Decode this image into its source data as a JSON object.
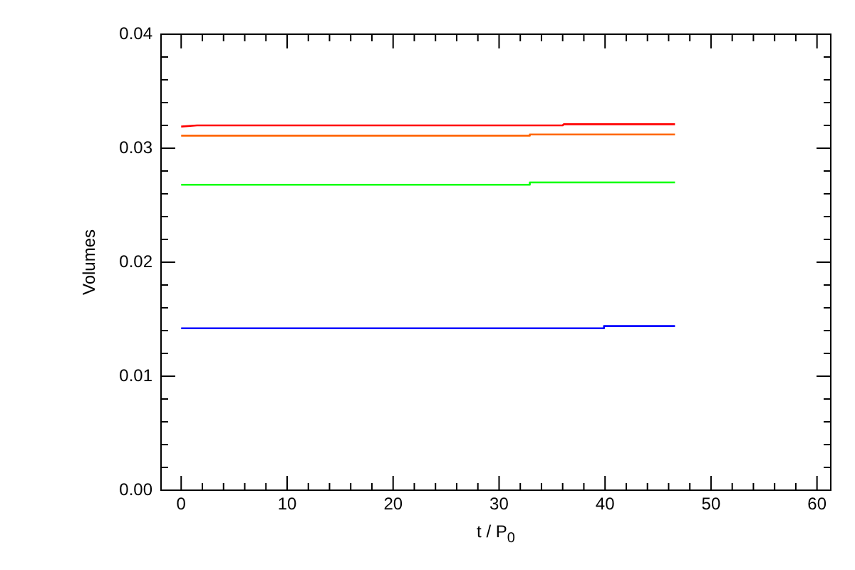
{
  "chart_data": {
    "type": "line",
    "xlabel": "t / P$_{0}$",
    "ylabel": "Volumes",
    "xlim": [
      -1.9,
      61.3
    ],
    "ylim": [
      0,
      0.04
    ],
    "xticks": [
      0,
      {
        "value": 2,
        "label": null
      },
      {
        "value": 4,
        "label": null
      },
      {
        "value": 6,
        "label": null
      },
      {
        "value": 8,
        "label": null
      },
      10,
      {
        "value": 12,
        "label": null
      },
      {
        "value": 14,
        "label": null
      },
      {
        "value": 16,
        "label": null
      },
      {
        "value": 18,
        "label": null
      },
      20,
      {
        "value": 22,
        "label": null
      },
      {
        "value": 24,
        "label": null
      },
      {
        "value": 26,
        "label": null
      },
      {
        "value": 28,
        "label": null
      },
      30,
      {
        "value": 32,
        "label": null
      },
      {
        "value": 34,
        "label": null
      },
      {
        "value": 36,
        "label": null
      },
      {
        "value": 38,
        "label": null
      },
      40,
      {
        "value": 42,
        "label": null
      },
      {
        "value": 44,
        "label": null
      },
      {
        "value": 46,
        "label": null
      },
      {
        "value": 48,
        "label": null
      },
      50,
      {
        "value": 52,
        "label": null
      },
      {
        "value": 54,
        "label": null
      },
      {
        "value": 56,
        "label": null
      },
      {
        "value": 58,
        "label": null
      },
      60
    ],
    "yticks": [
      {
        "value": 0,
        "label": "0.00"
      },
      {
        "value": 0.002,
        "label": null
      },
      {
        "value": 0.004,
        "label": null
      },
      {
        "value": 0.006,
        "label": null
      },
      {
        "value": 0.008,
        "label": null
      },
      {
        "value": 0.01,
        "label": "0.01"
      },
      {
        "value": 0.012,
        "label": null
      },
      {
        "value": 0.014,
        "label": null
      },
      {
        "value": 0.016,
        "label": null
      },
      {
        "value": 0.018,
        "label": null
      },
      {
        "value": 0.02,
        "label": "0.02"
      },
      {
        "value": 0.022,
        "label": null
      },
      {
        "value": 0.024,
        "label": null
      },
      {
        "value": 0.026,
        "label": null
      },
      {
        "value": 0.028,
        "label": null
      },
      {
        "value": 0.03,
        "label": "0.03"
      },
      {
        "value": 0.032,
        "label": null
      },
      {
        "value": 0.034,
        "label": null
      },
      {
        "value": 0.036,
        "label": null
      },
      {
        "value": 0.038,
        "label": null
      },
      {
        "value": 0.04,
        "label": "0.04"
      }
    ],
    "grid": false,
    "legend": false,
    "marker": "none",
    "line_style": "solid",
    "series": [
      {
        "color": "#ff0000",
        "x": [
          0,
          1.5,
          36,
          36.1,
          46.6
        ],
        "values": [
          0.0319,
          0.032,
          0.032,
          0.0321,
          0.0321
        ]
      },
      {
        "color": "#ff6600",
        "x": [
          0,
          32.8,
          32.9,
          46.6
        ],
        "values": [
          0.0311,
          0.0311,
          0.0312,
          0.0312
        ]
      },
      {
        "color": "#00ff00",
        "x": [
          0,
          32.8,
          32.9,
          46.6
        ],
        "values": [
          0.0268,
          0.0268,
          0.027,
          0.027
        ]
      },
      {
        "color": "#0000ff",
        "x": [
          0,
          39.8,
          39.9,
          46.6
        ],
        "values": [
          0.0142,
          0.0142,
          0.0144,
          0.0144
        ]
      }
    ]
  }
}
